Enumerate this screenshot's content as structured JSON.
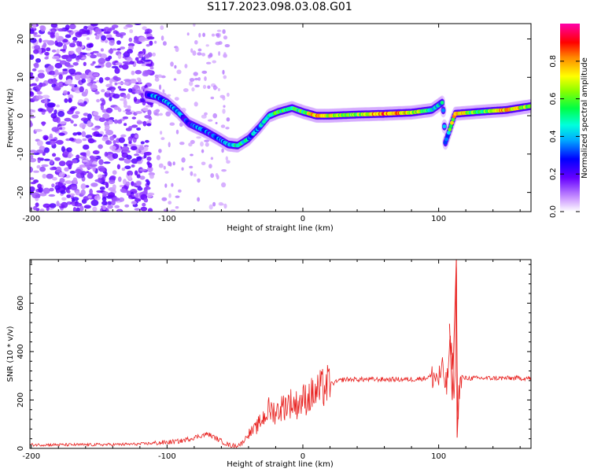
{
  "title": "S117.2023.098.03.08.G01",
  "colors": {
    "snr_line": "#e8201e",
    "axes": "#000000",
    "background": "#ffffff"
  },
  "chart_data": [
    {
      "type": "heatmap",
      "xlabel": "Height of straight line (km)",
      "ylabel": "Frequency (Hz)",
      "xlim": [
        -201,
        168
      ],
      "ylim": [
        -25,
        24
      ],
      "x_ticks": [
        -200,
        -100,
        0,
        100
      ],
      "y_ticks": [
        20,
        10,
        0,
        -10,
        -20
      ],
      "colormap": "rainbow (white-violet-blue-cyan-green-yellow-red-magenta)",
      "colorbar": {
        "label": "Normalized spectral amplitude",
        "range": [
          0,
          1
        ],
        "ticks": [
          "0.0",
          "0.2",
          "0.4",
          "0.6",
          "0.8"
        ]
      },
      "ridge": {
        "description_points": [
          {
            "x": -115,
            "y": 5.5,
            "amp": 0.3
          },
          {
            "x": -108,
            "y": 5.0,
            "amp": 0.35
          },
          {
            "x": -100,
            "y": 3.5,
            "amp": 0.35
          },
          {
            "x": -92,
            "y": 1.0,
            "amp": 0.35
          },
          {
            "x": -84,
            "y": -2.0,
            "amp": 0.3
          },
          {
            "x": -72,
            "y": -4.0,
            "amp": 0.3
          },
          {
            "x": -62,
            "y": -6.0,
            "amp": 0.3
          },
          {
            "x": -55,
            "y": -7.5,
            "amp": 0.35
          },
          {
            "x": -48,
            "y": -7.8,
            "amp": 0.5
          },
          {
            "x": -40,
            "y": -6.0,
            "amp": 0.4
          },
          {
            "x": -32,
            "y": -3.0,
            "amp": 0.35
          },
          {
            "x": -25,
            "y": 0.0,
            "amp": 0.5
          },
          {
            "x": -18,
            "y": 1.0,
            "amp": 0.55
          },
          {
            "x": -8,
            "y": 2.0,
            "amp": 0.5
          },
          {
            "x": 0,
            "y": 1.0,
            "amp": 0.55
          },
          {
            "x": 10,
            "y": 0.0,
            "amp": 0.8
          },
          {
            "x": 20,
            "y": 0.0,
            "amp": 0.7
          },
          {
            "x": 40,
            "y": 0.3,
            "amp": 0.6
          },
          {
            "x": 60,
            "y": 0.5,
            "amp": 0.85
          },
          {
            "x": 80,
            "y": 0.8,
            "amp": 0.7
          },
          {
            "x": 95,
            "y": 1.5,
            "amp": 0.5
          },
          {
            "x": 103,
            "y": 3.5,
            "amp": 0.4
          },
          {
            "x": 105,
            "y": -7.0,
            "amp": 0.3
          },
          {
            "x": 112,
            "y": 0.5,
            "amp": 0.8
          },
          {
            "x": 130,
            "y": 1.0,
            "amp": 0.5
          },
          {
            "x": 150,
            "y": 1.5,
            "amp": 0.8
          },
          {
            "x": 168,
            "y": 2.5,
            "amp": 0.6
          }
        ]
      }
    },
    {
      "type": "line",
      "xlabel": "Height of straight line (km)",
      "ylabel": "SNR (10 * v/v)",
      "xlim": [
        -201,
        168
      ],
      "ylim": [
        0,
        780
      ],
      "x_ticks": [
        -200,
        -100,
        0,
        100
      ],
      "y_ticks": [
        0,
        200,
        400,
        600
      ],
      "series": [
        {
          "x": [
            -200,
            -180,
            -160,
            -140,
            -120,
            -100,
            -90,
            -80,
            -70,
            -65,
            -60,
            -55,
            -50,
            -45,
            -40,
            -35,
            -30,
            -25,
            -20,
            -15,
            -10,
            -5,
            0,
            5,
            10,
            15,
            20,
            25,
            30,
            40,
            50,
            60,
            70,
            80,
            90,
            95,
            100,
            103,
            106,
            108,
            110,
            112,
            113,
            114,
            115,
            118,
            125,
            140,
            155,
            168
          ],
          "y": [
            15,
            15,
            15,
            16,
            18,
            25,
            30,
            45,
            60,
            45,
            30,
            15,
            10,
            20,
            60,
            80,
            120,
            160,
            150,
            170,
            190,
            180,
            200,
            215,
            230,
            250,
            265,
            275,
            285,
            285,
            285,
            285,
            285,
            285,
            290,
            300,
            290,
            320,
            250,
            420,
            380,
            200,
            780,
            120,
            250,
            290,
            290,
            290,
            290,
            290
          ]
        }
      ]
    }
  ]
}
